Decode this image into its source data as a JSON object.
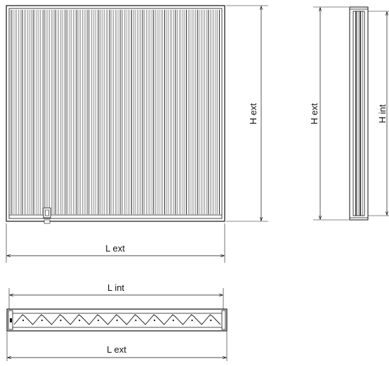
{
  "diagram": {
    "front_view": {
      "width_label": "L ext",
      "height_label": "H ext"
    },
    "side_view": {
      "outer_height_label": "H ext",
      "inner_height_label": "H int"
    },
    "top_view": {
      "inner_width_label": "L int",
      "outer_width_label": "L ext"
    }
  },
  "colors": {
    "line": "#111111",
    "background": "#ffffff"
  }
}
